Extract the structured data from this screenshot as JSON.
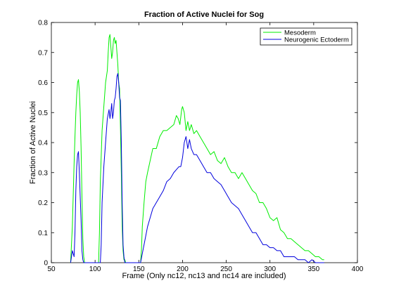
{
  "chart_data": {
    "type": "line",
    "title": "Fraction of Active Nuclei for Sog",
    "xlabel": "Frame (Only nc12, nc13 and nc14 are included)",
    "ylabel": "Fraction of Active Nuclei",
    "xlim": [
      50,
      400
    ],
    "ylim": [
      0,
      0.8
    ],
    "xticks": [
      50,
      100,
      150,
      200,
      250,
      300,
      350,
      400
    ],
    "yticks": [
      0,
      0.1,
      0.2,
      0.3,
      0.4,
      0.5,
      0.6,
      0.7,
      0.8
    ],
    "xtick_labels": [
      "50",
      "100",
      "150",
      "200",
      "250",
      "300",
      "350",
      "400"
    ],
    "ytick_labels": [
      "0",
      "0.1",
      "0.2",
      "0.3",
      "0.4",
      "0.5",
      "0.6",
      "0.7",
      "0.8"
    ],
    "grid": false,
    "legend_position": "top-right",
    "series": [
      {
        "name": "Mesoderm",
        "color": "#00ee00",
        "x": [
          72,
          74,
          76,
          77,
          78,
          79,
          80,
          81,
          82,
          83,
          84,
          85,
          86,
          87,
          88,
          104,
          105,
          106,
          108,
          110,
          112,
          114,
          115,
          116,
          117,
          118,
          119,
          120,
          121,
          122,
          123,
          124,
          125,
          126,
          127,
          128,
          129,
          130,
          131,
          132,
          133,
          134,
          135,
          152,
          153,
          154,
          156,
          158,
          160,
          163,
          166,
          170,
          174,
          178,
          182,
          186,
          190,
          193,
          195,
          197,
          199,
          200,
          202,
          204,
          206,
          208,
          210,
          213,
          216,
          220,
          224,
          228,
          232,
          236,
          240,
          244,
          248,
          252,
          256,
          260,
          264,
          268,
          272,
          276,
          280,
          284,
          288,
          292,
          296,
          300,
          304,
          308,
          312,
          316,
          320,
          324,
          328,
          332,
          336,
          340,
          344,
          348,
          352,
          356,
          360,
          362
        ],
        "y": [
          0,
          0.12,
          0.33,
          0.42,
          0.5,
          0.56,
          0.6,
          0.61,
          0.57,
          0.5,
          0.38,
          0.22,
          0.08,
          0.02,
          0,
          0,
          0.1,
          0.27,
          0.44,
          0.52,
          0.6,
          0.64,
          0.7,
          0.75,
          0.76,
          0.72,
          0.68,
          0.7,
          0.74,
          0.75,
          0.73,
          0.74,
          0.7,
          0.66,
          0.6,
          0.58,
          0.45,
          0.3,
          0.12,
          0.04,
          0.01,
          0.01,
          0,
          0,
          0.04,
          0.12,
          0.2,
          0.27,
          0.3,
          0.34,
          0.38,
          0.38,
          0.42,
          0.44,
          0.44,
          0.45,
          0.46,
          0.49,
          0.48,
          0.46,
          0.51,
          0.52,
          0.5,
          0.44,
          0.47,
          0.44,
          0.46,
          0.43,
          0.44,
          0.42,
          0.4,
          0.38,
          0.36,
          0.37,
          0.34,
          0.33,
          0.35,
          0.32,
          0.3,
          0.3,
          0.28,
          0.3,
          0.28,
          0.26,
          0.24,
          0.23,
          0.2,
          0.2,
          0.18,
          0.15,
          0.14,
          0.15,
          0.11,
          0.1,
          0.08,
          0.08,
          0.07,
          0.06,
          0.05,
          0.04,
          0.04,
          0.03,
          0.02,
          0.02,
          0.01,
          0.01
        ]
      },
      {
        "name": "Neurogenic Ectoderm",
        "color": "#0000dd",
        "x": [
          72,
          74,
          76,
          77,
          78,
          79,
          80,
          81,
          82,
          83,
          84,
          85,
          86,
          87,
          88,
          106,
          107,
          108,
          110,
          112,
          114,
          116,
          117,
          118,
          119,
          120,
          121,
          122,
          123,
          124,
          125,
          126,
          127,
          128,
          129,
          130,
          131,
          132,
          133,
          134,
          152,
          154,
          156,
          158,
          160,
          163,
          166,
          170,
          174,
          178,
          182,
          186,
          190,
          193,
          196,
          198,
          200,
          202,
          204,
          206,
          208,
          210,
          213,
          216,
          220,
          224,
          228,
          232,
          236,
          240,
          244,
          248,
          252,
          256,
          260,
          264,
          268,
          272,
          276,
          280,
          284,
          288,
          292,
          296,
          300,
          304,
          308,
          312,
          316,
          320,
          324,
          328,
          332,
          336,
          340,
          344,
          348,
          352,
          356,
          360,
          362
        ],
        "y": [
          0,
          0.04,
          0.02,
          0.1,
          0.24,
          0.32,
          0.36,
          0.37,
          0.3,
          0.22,
          0.14,
          0.04,
          0.01,
          0,
          0,
          0,
          0.06,
          0.2,
          0.32,
          0.4,
          0.48,
          0.51,
          0.48,
          0.5,
          0.53,
          0.48,
          0.5,
          0.54,
          0.55,
          0.58,
          0.62,
          0.63,
          0.6,
          0.55,
          0.54,
          0.4,
          0.2,
          0.06,
          0.02,
          0,
          0,
          0.03,
          0.06,
          0.09,
          0.12,
          0.15,
          0.18,
          0.2,
          0.22,
          0.24,
          0.27,
          0.28,
          0.3,
          0.31,
          0.32,
          0.32,
          0.35,
          0.4,
          0.42,
          0.38,
          0.41,
          0.38,
          0.36,
          0.36,
          0.34,
          0.32,
          0.3,
          0.3,
          0.28,
          0.27,
          0.26,
          0.24,
          0.22,
          0.2,
          0.19,
          0.18,
          0.16,
          0.14,
          0.12,
          0.1,
          0.1,
          0.08,
          0.06,
          0.06,
          0.05,
          0.05,
          0.04,
          0.04,
          0.02,
          0.02,
          0.02,
          0.02,
          0.01,
          0.01,
          0.01,
          0,
          0.01,
          0,
          0,
          0,
          0
        ]
      }
    ]
  }
}
